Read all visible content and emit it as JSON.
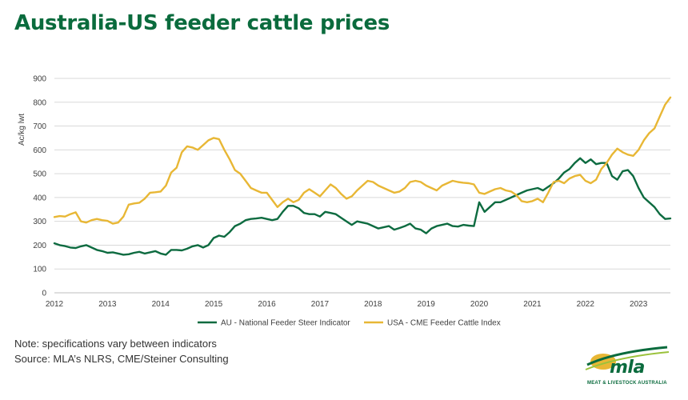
{
  "header": {
    "title": "Australia-US feeder cattle prices"
  },
  "footer": {
    "note": "Note: specifications vary between indicators",
    "source": "Source: MLA’s NLRS, CME/Steiner Consulting"
  },
  "logo": {
    "wordmark": "mla",
    "tagline": "MEAT & LIVESTOCK AUSTRALIA"
  },
  "colors": {
    "au": "#0d6b40",
    "usa": "#e8b735",
    "grid": "#d9d9d9",
    "brand": "#0a6b3d"
  },
  "chart_data": {
    "type": "line",
    "title": "Australia-US feeder cattle prices",
    "ylabel": "Ac/kg lwt",
    "xlabel": "",
    "ylim": [
      0,
      900
    ],
    "yticks": [
      0,
      100,
      200,
      300,
      400,
      500,
      600,
      700,
      800,
      900
    ],
    "xlim": [
      2012,
      2023.6
    ],
    "xticks": [
      "2012",
      "2013",
      "2014",
      "2015",
      "2016",
      "2017",
      "2018",
      "2019",
      "2020",
      "2021",
      "2022",
      "2023"
    ],
    "grid": "horizontal",
    "legend_position": "bottom",
    "series": [
      {
        "name": "AU - National Feeder Steer Indicator",
        "color": "#0d6b40",
        "x": [
          2012.0,
          2012.1,
          2012.2,
          2012.3,
          2012.4,
          2012.5,
          2012.6,
          2012.7,
          2012.8,
          2012.9,
          2013.0,
          2013.1,
          2013.2,
          2013.3,
          2013.4,
          2013.5,
          2013.6,
          2013.7,
          2013.8,
          2013.9,
          2014.0,
          2014.1,
          2014.2,
          2014.3,
          2014.4,
          2014.5,
          2014.6,
          2014.7,
          2014.8,
          2014.9,
          2015.0,
          2015.1,
          2015.2,
          2015.3,
          2015.4,
          2015.5,
          2015.6,
          2015.7,
          2015.8,
          2015.9,
          2016.0,
          2016.1,
          2016.2,
          2016.3,
          2016.4,
          2016.5,
          2016.6,
          2016.7,
          2016.8,
          2016.9,
          2017.0,
          2017.1,
          2017.2,
          2017.3,
          2017.4,
          2017.5,
          2017.6,
          2017.7,
          2017.8,
          2017.9,
          2018.0,
          2018.1,
          2018.2,
          2018.3,
          2018.4,
          2018.5,
          2018.6,
          2018.7,
          2018.8,
          2018.9,
          2019.0,
          2019.1,
          2019.2,
          2019.3,
          2019.4,
          2019.5,
          2019.6,
          2019.7,
          2019.8,
          2019.9,
          2020.0,
          2020.1,
          2020.2,
          2020.3,
          2020.4,
          2020.5,
          2020.6,
          2020.7,
          2020.8,
          2020.9,
          2021.0,
          2021.1,
          2021.2,
          2021.3,
          2021.4,
          2021.5,
          2021.6,
          2021.7,
          2021.8,
          2021.9,
          2022.0,
          2022.1,
          2022.2,
          2022.3,
          2022.4,
          2022.5,
          2022.6,
          2022.7,
          2022.8,
          2022.9,
          2023.0,
          2023.1,
          2023.2,
          2023.3,
          2023.4,
          2023.5,
          2023.6
        ],
        "values": [
          208,
          200,
          196,
          190,
          188,
          195,
          200,
          190,
          180,
          175,
          168,
          170,
          165,
          160,
          162,
          168,
          172,
          165,
          170,
          175,
          165,
          160,
          180,
          180,
          178,
          185,
          195,
          200,
          190,
          200,
          230,
          240,
          235,
          255,
          280,
          290,
          305,
          310,
          312,
          315,
          310,
          305,
          310,
          340,
          365,
          365,
          355,
          335,
          330,
          330,
          320,
          340,
          335,
          330,
          315,
          300,
          285,
          300,
          295,
          290,
          280,
          270,
          275,
          280,
          265,
          272,
          280,
          290,
          270,
          265,
          250,
          270,
          280,
          285,
          290,
          280,
          278,
          285,
          282,
          280,
          380,
          340,
          360,
          380,
          380,
          390,
          400,
          410,
          420,
          430,
          435,
          440,
          430,
          445,
          460,
          480,
          505,
          520,
          545,
          565,
          545,
          560,
          540,
          545,
          545,
          490,
          475,
          510,
          515,
          490,
          440,
          400,
          380,
          360,
          330,
          310,
          312
        ]
      },
      {
        "name": "USA - CME Feeder Cattle Index",
        "color": "#e8b735",
        "x": [
          2012.0,
          2012.1,
          2012.2,
          2012.3,
          2012.4,
          2012.5,
          2012.6,
          2012.7,
          2012.8,
          2012.9,
          2013.0,
          2013.1,
          2013.2,
          2013.3,
          2013.4,
          2013.5,
          2013.6,
          2013.7,
          2013.8,
          2013.9,
          2014.0,
          2014.1,
          2014.2,
          2014.3,
          2014.4,
          2014.5,
          2014.6,
          2014.7,
          2014.8,
          2014.9,
          2015.0,
          2015.1,
          2015.2,
          2015.3,
          2015.4,
          2015.5,
          2015.6,
          2015.7,
          2015.8,
          2015.9,
          2016.0,
          2016.1,
          2016.2,
          2016.3,
          2016.4,
          2016.5,
          2016.6,
          2016.7,
          2016.8,
          2016.9,
          2017.0,
          2017.1,
          2017.2,
          2017.3,
          2017.4,
          2017.5,
          2017.6,
          2017.7,
          2017.8,
          2017.9,
          2018.0,
          2018.1,
          2018.2,
          2018.3,
          2018.4,
          2018.5,
          2018.6,
          2018.7,
          2018.8,
          2018.9,
          2019.0,
          2019.1,
          2019.2,
          2019.3,
          2019.4,
          2019.5,
          2019.6,
          2019.7,
          2019.8,
          2019.9,
          2020.0,
          2020.1,
          2020.2,
          2020.3,
          2020.4,
          2020.5,
          2020.6,
          2020.7,
          2020.8,
          2020.9,
          2021.0,
          2021.1,
          2021.2,
          2021.3,
          2021.4,
          2021.5,
          2021.6,
          2021.7,
          2021.8,
          2021.9,
          2022.0,
          2022.1,
          2022.2,
          2022.3,
          2022.4,
          2022.5,
          2022.6,
          2022.7,
          2022.8,
          2022.9,
          2023.0,
          2023.1,
          2023.2,
          2023.3,
          2023.4,
          2023.5,
          2023.6
        ],
        "values": [
          318,
          322,
          320,
          330,
          338,
          300,
          295,
          305,
          310,
          305,
          302,
          290,
          295,
          320,
          370,
          375,
          378,
          395,
          420,
          422,
          425,
          450,
          505,
          525,
          590,
          615,
          610,
          600,
          620,
          640,
          650,
          645,
          600,
          560,
          515,
          500,
          470,
          440,
          430,
          420,
          420,
          390,
          360,
          380,
          395,
          380,
          390,
          420,
          435,
          420,
          405,
          430,
          455,
          440,
          415,
          395,
          405,
          430,
          450,
          470,
          465,
          450,
          440,
          430,
          420,
          425,
          440,
          465,
          470,
          465,
          450,
          440,
          430,
          450,
          460,
          470,
          465,
          462,
          460,
          455,
          420,
          415,
          425,
          435,
          440,
          430,
          425,
          410,
          385,
          380,
          385,
          395,
          380,
          420,
          465,
          470,
          460,
          480,
          490,
          495,
          470,
          460,
          475,
          520,
          545,
          580,
          605,
          590,
          580,
          575,
          600,
          640,
          670,
          690,
          740,
          790,
          820
        ]
      }
    ]
  }
}
